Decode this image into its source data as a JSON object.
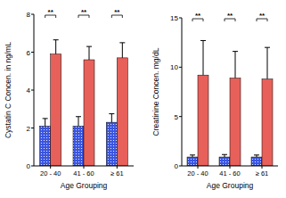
{
  "chart_data": [
    {
      "type": "bar",
      "y_label": "Cystatin C Concen. in ng/mL",
      "x_label": "Age Grouping",
      "categories": [
        "20 - 40",
        "41 - 60",
        "≥ 61"
      ],
      "series": [
        {
          "color": "#3a55e0",
          "values": [
            2.1,
            2.1,
            2.3
          ],
          "errors": [
            0.4,
            0.5,
            0.45
          ]
        },
        {
          "color": "#e8605a",
          "values": [
            5.9,
            5.6,
            5.7
          ],
          "errors": [
            0.75,
            0.7,
            0.8
          ]
        }
      ],
      "annotations": [
        "**",
        "**",
        "**"
      ],
      "ylim": [
        0,
        8
      ],
      "yticks": [
        0,
        2,
        4,
        6,
        8
      ]
    },
    {
      "type": "bar",
      "y_label": "Creatinine Concen. mg/dL",
      "x_label": "Age Grouping",
      "categories": [
        "20 - 40",
        "41 - 60",
        "≥ 61"
      ],
      "series": [
        {
          "color": "#3a55e0",
          "values": [
            0.9,
            0.9,
            0.9
          ],
          "errors": [
            0.2,
            0.25,
            0.2
          ]
        },
        {
          "color": "#e8605a",
          "values": [
            9.2,
            8.9,
            8.8
          ],
          "errors": [
            3.5,
            2.7,
            3.2
          ]
        }
      ],
      "annotations": [
        "**",
        "**",
        "**"
      ],
      "ylim": [
        0,
        15
      ],
      "yticks": [
        0,
        5,
        10,
        15
      ]
    }
  ]
}
